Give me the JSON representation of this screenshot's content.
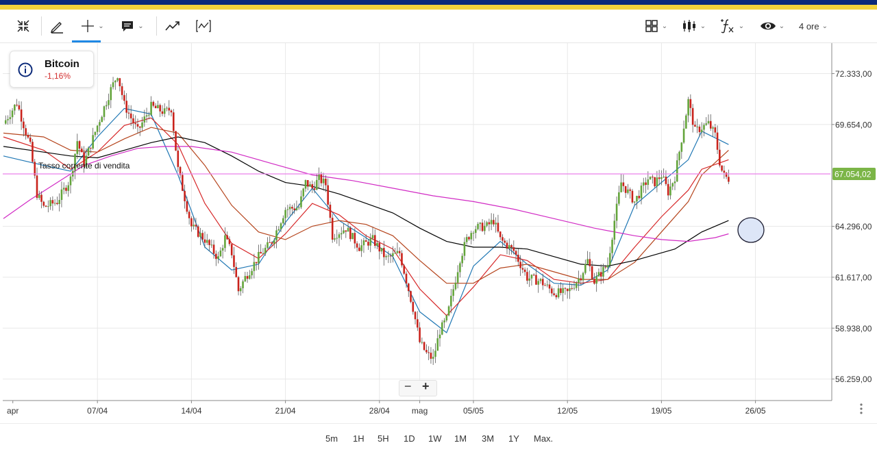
{
  "toolbar": {
    "interval_label": "4 ore",
    "icons": [
      "collapse-icon",
      "pencil-icon",
      "crosshair-icon",
      "comment-icon",
      "trend-icon",
      "indicator-icon",
      "layout-grid-icon",
      "candles-icon",
      "function-icon",
      "eye-icon"
    ]
  },
  "instrument": {
    "name": "Bitcoin",
    "change": "-1,16%",
    "change_color": "#d32f2f"
  },
  "current_price_label": "67.054,02",
  "annotation": "Tasso corrente di vendita",
  "range_buttons": [
    "5m",
    "1H",
    "5H",
    "1D",
    "1W",
    "1M",
    "3M",
    "1Y",
    "Max."
  ],
  "chart_data": {
    "type": "line",
    "subtype": "candlestick",
    "title": "",
    "xlabel": "",
    "ylabel": "",
    "ylim": [
      55000,
      73500
    ],
    "y_ticks": [
      {
        "value": 72333,
        "label": "72.333,00"
      },
      {
        "value": 69654,
        "label": "69.654,00"
      },
      {
        "value": 67054.02,
        "label": "67.054,02"
      },
      {
        "value": 64296,
        "label": "64.296,00"
      },
      {
        "value": 61617,
        "label": "61.617,00"
      },
      {
        "value": 58938,
        "label": "58.938,00"
      },
      {
        "value": 56259,
        "label": "56.259,00"
      }
    ],
    "x_range": [
      0,
      55.5
    ],
    "x_ticks": [
      {
        "day": 0.7,
        "label": "apr"
      },
      {
        "day": 7.0,
        "label": "07/04"
      },
      {
        "day": 14.0,
        "label": "14/04"
      },
      {
        "day": 21.0,
        "label": "21/04"
      },
      {
        "day": 28.0,
        "label": "28/04"
      },
      {
        "day": 31.0,
        "label": "mag"
      },
      {
        "day": 35.0,
        "label": "05/05"
      },
      {
        "day": 42.0,
        "label": "12/05"
      },
      {
        "day": 49.0,
        "label": "19/05"
      },
      {
        "day": 56.0,
        "label": "26/05"
      }
    ],
    "grid": true,
    "current_price": 67054.02,
    "price_path": [
      [
        0,
        69700
      ],
      [
        1,
        70800
      ],
      [
        2,
        68500
      ],
      [
        2.5,
        66000
      ],
      [
        3,
        65300
      ],
      [
        4,
        65600
      ],
      [
        5,
        66800
      ],
      [
        5.5,
        68800
      ],
      [
        6,
        67600
      ],
      [
        7,
        69600
      ],
      [
        8,
        71500
      ],
      [
        8.5,
        72300
      ],
      [
        9,
        70700
      ],
      [
        10,
        69300
      ],
      [
        11,
        70600
      ],
      [
        12,
        70300
      ],
      [
        12.5,
        70500
      ],
      [
        13,
        67300
      ],
      [
        13.5,
        65800
      ],
      [
        14,
        64300
      ],
      [
        15,
        63600
      ],
      [
        16,
        62600
      ],
      [
        16.5,
        63700
      ],
      [
        17,
        62900
      ],
      [
        17.5,
        60900
      ],
      [
        18,
        61600
      ],
      [
        19,
        62700
      ],
      [
        20,
        63500
      ],
      [
        21,
        65200
      ],
      [
        22,
        65300
      ],
      [
        22.5,
        66600
      ],
      [
        23,
        66300
      ],
      [
        23.5,
        66800
      ],
      [
        24,
        66500
      ],
      [
        24.5,
        63800
      ],
      [
        25.5,
        64200
      ],
      [
        26.5,
        63200
      ],
      [
        27.5,
        63600
      ],
      [
        28.5,
        62600
      ],
      [
        29.5,
        62900
      ],
      [
        30.5,
        60000
      ],
      [
        31,
        58200
      ],
      [
        31.5,
        57600
      ],
      [
        32,
        57300
      ],
      [
        32.5,
        58800
      ],
      [
        33,
        59400
      ],
      [
        34,
        62600
      ],
      [
        34.5,
        63600
      ],
      [
        35,
        64200
      ],
      [
        36,
        64300
      ],
      [
        36.5,
        64600
      ],
      [
        37,
        63600
      ],
      [
        38,
        63000
      ],
      [
        39,
        61600
      ],
      [
        40,
        61400
      ],
      [
        41,
        60800
      ],
      [
        42,
        60800
      ],
      [
        43,
        61700
      ],
      [
        43.5,
        62500
      ],
      [
        44,
        61400
      ],
      [
        45,
        62300
      ],
      [
        45.5,
        64600
      ],
      [
        46,
        66600
      ],
      [
        47,
        65600
      ],
      [
        48,
        66800
      ],
      [
        48.5,
        66600
      ],
      [
        49,
        67000
      ],
      [
        49.5,
        66100
      ],
      [
        50,
        66900
      ],
      [
        51,
        70900
      ],
      [
        51.5,
        69300
      ],
      [
        52,
        69500
      ],
      [
        52.5,
        69700
      ],
      [
        53,
        69100
      ],
      [
        53.4,
        67400
      ],
      [
        53.7,
        66900
      ],
      [
        54,
        66800
      ]
    ],
    "series": [
      {
        "name": "",
        "color": "#1f77b4",
        "values": [
          [
            0,
            68000
          ],
          [
            3,
            67500
          ],
          [
            5,
            67200
          ],
          [
            7,
            69000
          ],
          [
            9,
            70500
          ],
          [
            11,
            70200
          ],
          [
            13,
            67000
          ],
          [
            15,
            63200
          ],
          [
            17,
            62000
          ],
          [
            19,
            62300
          ],
          [
            21,
            64500
          ],
          [
            23,
            66300
          ],
          [
            25,
            64600
          ],
          [
            27,
            63700
          ],
          [
            29,
            62700
          ],
          [
            31,
            59800
          ],
          [
            33,
            58700
          ],
          [
            35,
            62200
          ],
          [
            37,
            63500
          ],
          [
            39,
            62300
          ],
          [
            41,
            61300
          ],
          [
            43,
            61200
          ],
          [
            45,
            62000
          ],
          [
            47,
            65400
          ],
          [
            49,
            66600
          ],
          [
            51,
            67800
          ],
          [
            52,
            69300
          ],
          [
            54,
            68600
          ]
        ]
      },
      {
        "name": "",
        "color": "#d62728",
        "values": [
          [
            0,
            69000
          ],
          [
            3,
            68300
          ],
          [
            5,
            67300
          ],
          [
            7,
            68200
          ],
          [
            9,
            69600
          ],
          [
            11,
            70000
          ],
          [
            13,
            68600
          ],
          [
            15,
            65500
          ],
          [
            17,
            63400
          ],
          [
            19,
            62600
          ],
          [
            21,
            63900
          ],
          [
            23,
            65500
          ],
          [
            25,
            64900
          ],
          [
            27,
            63800
          ],
          [
            29,
            63100
          ],
          [
            31,
            61000
          ],
          [
            33,
            59600
          ],
          [
            35,
            61100
          ],
          [
            37,
            62800
          ],
          [
            39,
            62500
          ],
          [
            41,
            61500
          ],
          [
            43,
            61300
          ],
          [
            45,
            61500
          ],
          [
            47,
            63200
          ],
          [
            49,
            64800
          ],
          [
            51,
            66200
          ],
          [
            52,
            67300
          ],
          [
            54,
            67800
          ]
        ]
      },
      {
        "name": "",
        "color": "#b5441c",
        "values": [
          [
            0,
            69200
          ],
          [
            3,
            69000
          ],
          [
            5,
            68300
          ],
          [
            7,
            68200
          ],
          [
            9,
            68900
          ],
          [
            11,
            69500
          ],
          [
            13,
            69200
          ],
          [
            15,
            67500
          ],
          [
            17,
            65400
          ],
          [
            19,
            64000
          ],
          [
            21,
            63600
          ],
          [
            23,
            64300
          ],
          [
            25,
            64600
          ],
          [
            27,
            64400
          ],
          [
            29,
            63800
          ],
          [
            31,
            62500
          ],
          [
            33,
            61300
          ],
          [
            35,
            61300
          ],
          [
            37,
            62100
          ],
          [
            39,
            62300
          ],
          [
            41,
            61900
          ],
          [
            43,
            61500
          ],
          [
            45,
            61500
          ],
          [
            47,
            62400
          ],
          [
            49,
            64000
          ],
          [
            51,
            65600
          ],
          [
            52,
            67000
          ],
          [
            54,
            68300
          ]
        ]
      },
      {
        "name": "",
        "color": "#000000",
        "values": [
          [
            0,
            68500
          ],
          [
            3,
            68200
          ],
          [
            5,
            68000
          ],
          [
            7,
            67900
          ],
          [
            9,
            68300
          ],
          [
            11,
            68700
          ],
          [
            13,
            69000
          ],
          [
            15,
            68700
          ],
          [
            17,
            68000
          ],
          [
            19,
            67200
          ],
          [
            21,
            66600
          ],
          [
            23,
            66400
          ],
          [
            25,
            66000
          ],
          [
            27,
            65500
          ],
          [
            29,
            65000
          ],
          [
            31,
            64200
          ],
          [
            33,
            63500
          ],
          [
            35,
            63200
          ],
          [
            37,
            63200
          ],
          [
            39,
            63100
          ],
          [
            41,
            62700
          ],
          [
            43,
            62300
          ],
          [
            45,
            62200
          ],
          [
            47,
            62500
          ],
          [
            49,
            62900
          ],
          [
            50,
            63100
          ],
          [
            52,
            64000
          ],
          [
            54,
            64600
          ]
        ]
      },
      {
        "name": "",
        "color": "#d12ac4",
        "values": [
          [
            0,
            64700
          ],
          [
            2,
            65700
          ],
          [
            4,
            66600
          ],
          [
            6,
            67500
          ],
          [
            8,
            68000
          ],
          [
            10,
            68400
          ],
          [
            12,
            68500
          ],
          [
            14,
            68500
          ],
          [
            17,
            68200
          ],
          [
            20,
            67600
          ],
          [
            23,
            67000
          ],
          [
            26,
            66700
          ],
          [
            29,
            66300
          ],
          [
            32,
            65900
          ],
          [
            35,
            65600
          ],
          [
            38,
            65200
          ],
          [
            41,
            64700
          ],
          [
            44,
            64200
          ],
          [
            47,
            63800
          ],
          [
            49,
            63600
          ],
          [
            51,
            63500
          ],
          [
            53,
            63700
          ],
          [
            54,
            63900
          ]
        ]
      }
    ],
    "legend": "none"
  },
  "colors": {
    "up_candle": "#63a43b",
    "down_candle": "#c9221b",
    "price_line": "#ea80ea",
    "price_tag": "#7bb547",
    "grid": "#e8e8e8"
  }
}
